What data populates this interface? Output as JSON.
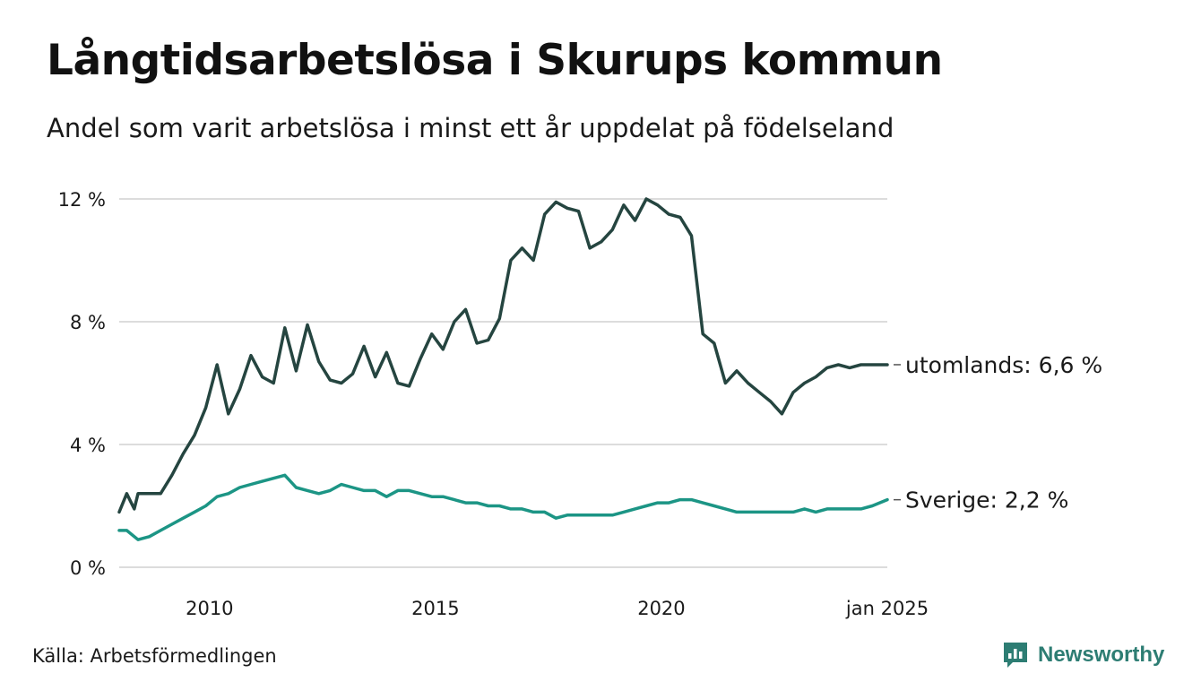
{
  "title": "Långtidsarbetslösa i Skurups kommun",
  "subtitle": "Andel som varit arbetslösa i minst ett år uppdelat på födelseland",
  "source": "Källa: Arbetsförmedlingen",
  "brand": "Newsworthy",
  "colors": {
    "utomlands": "#254540",
    "sverige": "#1c9585",
    "grid": "#dcdcdc",
    "brand": "#2d7d73"
  },
  "chart_data": {
    "type": "line",
    "x_start": "2008-01",
    "x_end": "2025-01",
    "y_ticks": [
      {
        "value": 0,
        "label": "0 %"
      },
      {
        "value": 4,
        "label": "4 %"
      },
      {
        "value": 8,
        "label": "8 %"
      },
      {
        "value": 12,
        "label": "12 %"
      }
    ],
    "x_ticks": [
      {
        "value": "2010-01",
        "label": "2010"
      },
      {
        "value": "2015-01",
        "label": "2015"
      },
      {
        "value": "2020-01",
        "label": "2020"
      },
      {
        "value": "2025-01",
        "label": "jan 2025"
      }
    ],
    "ylim": [
      0,
      12.5
    ],
    "grid": true,
    "series": [
      {
        "key": "utomlands",
        "end_label": "utomlands: 6,6 %",
        "points": [
          [
            "2008-01",
            1.8
          ],
          [
            "2008-03",
            2.4
          ],
          [
            "2008-05",
            1.9
          ],
          [
            "2008-06",
            2.4
          ],
          [
            "2008-09",
            2.4
          ],
          [
            "2008-12",
            2.4
          ],
          [
            "2009-03",
            3.0
          ],
          [
            "2009-06",
            3.7
          ],
          [
            "2009-09",
            4.3
          ],
          [
            "2009-12",
            5.2
          ],
          [
            "2010-03",
            6.6
          ],
          [
            "2010-06",
            5.0
          ],
          [
            "2010-09",
            5.8
          ],
          [
            "2010-12",
            6.9
          ],
          [
            "2011-03",
            6.2
          ],
          [
            "2011-06",
            6.0
          ],
          [
            "2011-09",
            7.8
          ],
          [
            "2011-12",
            6.4
          ],
          [
            "2012-03",
            7.9
          ],
          [
            "2012-06",
            6.7
          ],
          [
            "2012-09",
            6.1
          ],
          [
            "2012-12",
            6.0
          ],
          [
            "2013-03",
            6.3
          ],
          [
            "2013-06",
            7.2
          ],
          [
            "2013-09",
            6.2
          ],
          [
            "2013-12",
            7.0
          ],
          [
            "2014-03",
            6.0
          ],
          [
            "2014-06",
            5.9
          ],
          [
            "2014-09",
            6.8
          ],
          [
            "2014-12",
            7.6
          ],
          [
            "2015-03",
            7.1
          ],
          [
            "2015-06",
            8.0
          ],
          [
            "2015-09",
            8.4
          ],
          [
            "2015-12",
            7.3
          ],
          [
            "2016-03",
            7.4
          ],
          [
            "2016-06",
            8.1
          ],
          [
            "2016-09",
            10.0
          ],
          [
            "2016-12",
            10.4
          ],
          [
            "2017-03",
            10.0
          ],
          [
            "2017-06",
            11.5
          ],
          [
            "2017-09",
            11.9
          ],
          [
            "2017-12",
            11.7
          ],
          [
            "2018-03",
            11.6
          ],
          [
            "2018-06",
            10.4
          ],
          [
            "2018-09",
            10.6
          ],
          [
            "2018-12",
            11.0
          ],
          [
            "2019-03",
            11.8
          ],
          [
            "2019-06",
            11.3
          ],
          [
            "2019-09",
            12.0
          ],
          [
            "2019-12",
            11.8
          ],
          [
            "2020-03",
            11.5
          ],
          [
            "2020-06",
            11.4
          ],
          [
            "2020-09",
            10.8
          ],
          [
            "2020-12",
            7.6
          ],
          [
            "2021-03",
            7.3
          ],
          [
            "2021-06",
            6.0
          ],
          [
            "2021-09",
            6.4
          ],
          [
            "2021-12",
            6.0
          ],
          [
            "2022-03",
            5.7
          ],
          [
            "2022-06",
            5.4
          ],
          [
            "2022-09",
            5.0
          ],
          [
            "2022-12",
            5.7
          ],
          [
            "2023-03",
            6.0
          ],
          [
            "2023-06",
            6.2
          ],
          [
            "2023-09",
            6.5
          ],
          [
            "2023-12",
            6.6
          ],
          [
            "2024-03",
            6.5
          ],
          [
            "2024-06",
            6.6
          ],
          [
            "2024-09",
            6.6
          ],
          [
            "2025-01",
            6.6
          ]
        ]
      },
      {
        "key": "sverige",
        "end_label": "Sverige: 2,2 %",
        "points": [
          [
            "2008-01",
            1.2
          ],
          [
            "2008-03",
            1.2
          ],
          [
            "2008-06",
            0.9
          ],
          [
            "2008-09",
            1.0
          ],
          [
            "2008-12",
            1.2
          ],
          [
            "2009-03",
            1.4
          ],
          [
            "2009-06",
            1.6
          ],
          [
            "2009-09",
            1.8
          ],
          [
            "2009-12",
            2.0
          ],
          [
            "2010-03",
            2.3
          ],
          [
            "2010-06",
            2.4
          ],
          [
            "2010-09",
            2.6
          ],
          [
            "2010-12",
            2.7
          ],
          [
            "2011-03",
            2.8
          ],
          [
            "2011-06",
            2.9
          ],
          [
            "2011-09",
            3.0
          ],
          [
            "2011-12",
            2.6
          ],
          [
            "2012-03",
            2.5
          ],
          [
            "2012-06",
            2.4
          ],
          [
            "2012-09",
            2.5
          ],
          [
            "2012-12",
            2.7
          ],
          [
            "2013-03",
            2.6
          ],
          [
            "2013-06",
            2.5
          ],
          [
            "2013-09",
            2.5
          ],
          [
            "2013-12",
            2.3
          ],
          [
            "2014-03",
            2.5
          ],
          [
            "2014-06",
            2.5
          ],
          [
            "2014-09",
            2.4
          ],
          [
            "2014-12",
            2.3
          ],
          [
            "2015-03",
            2.3
          ],
          [
            "2015-06",
            2.2
          ],
          [
            "2015-09",
            2.1
          ],
          [
            "2015-12",
            2.1
          ],
          [
            "2016-03",
            2.0
          ],
          [
            "2016-06",
            2.0
          ],
          [
            "2016-09",
            1.9
          ],
          [
            "2016-12",
            1.9
          ],
          [
            "2017-03",
            1.8
          ],
          [
            "2017-06",
            1.8
          ],
          [
            "2017-09",
            1.6
          ],
          [
            "2017-12",
            1.7
          ],
          [
            "2018-03",
            1.7
          ],
          [
            "2018-06",
            1.7
          ],
          [
            "2018-09",
            1.7
          ],
          [
            "2018-12",
            1.7
          ],
          [
            "2019-03",
            1.8
          ],
          [
            "2019-06",
            1.9
          ],
          [
            "2019-09",
            2.0
          ],
          [
            "2019-12",
            2.1
          ],
          [
            "2020-03",
            2.1
          ],
          [
            "2020-06",
            2.2
          ],
          [
            "2020-09",
            2.2
          ],
          [
            "2020-12",
            2.1
          ],
          [
            "2021-03",
            2.0
          ],
          [
            "2021-06",
            1.9
          ],
          [
            "2021-09",
            1.8
          ],
          [
            "2021-12",
            1.8
          ],
          [
            "2022-03",
            1.8
          ],
          [
            "2022-06",
            1.8
          ],
          [
            "2022-09",
            1.8
          ],
          [
            "2022-12",
            1.8
          ],
          [
            "2023-03",
            1.9
          ],
          [
            "2023-06",
            1.8
          ],
          [
            "2023-09",
            1.9
          ],
          [
            "2023-12",
            1.9
          ],
          [
            "2024-03",
            1.9
          ],
          [
            "2024-06",
            1.9
          ],
          [
            "2024-09",
            2.0
          ],
          [
            "2025-01",
            2.2
          ]
        ]
      }
    ]
  }
}
